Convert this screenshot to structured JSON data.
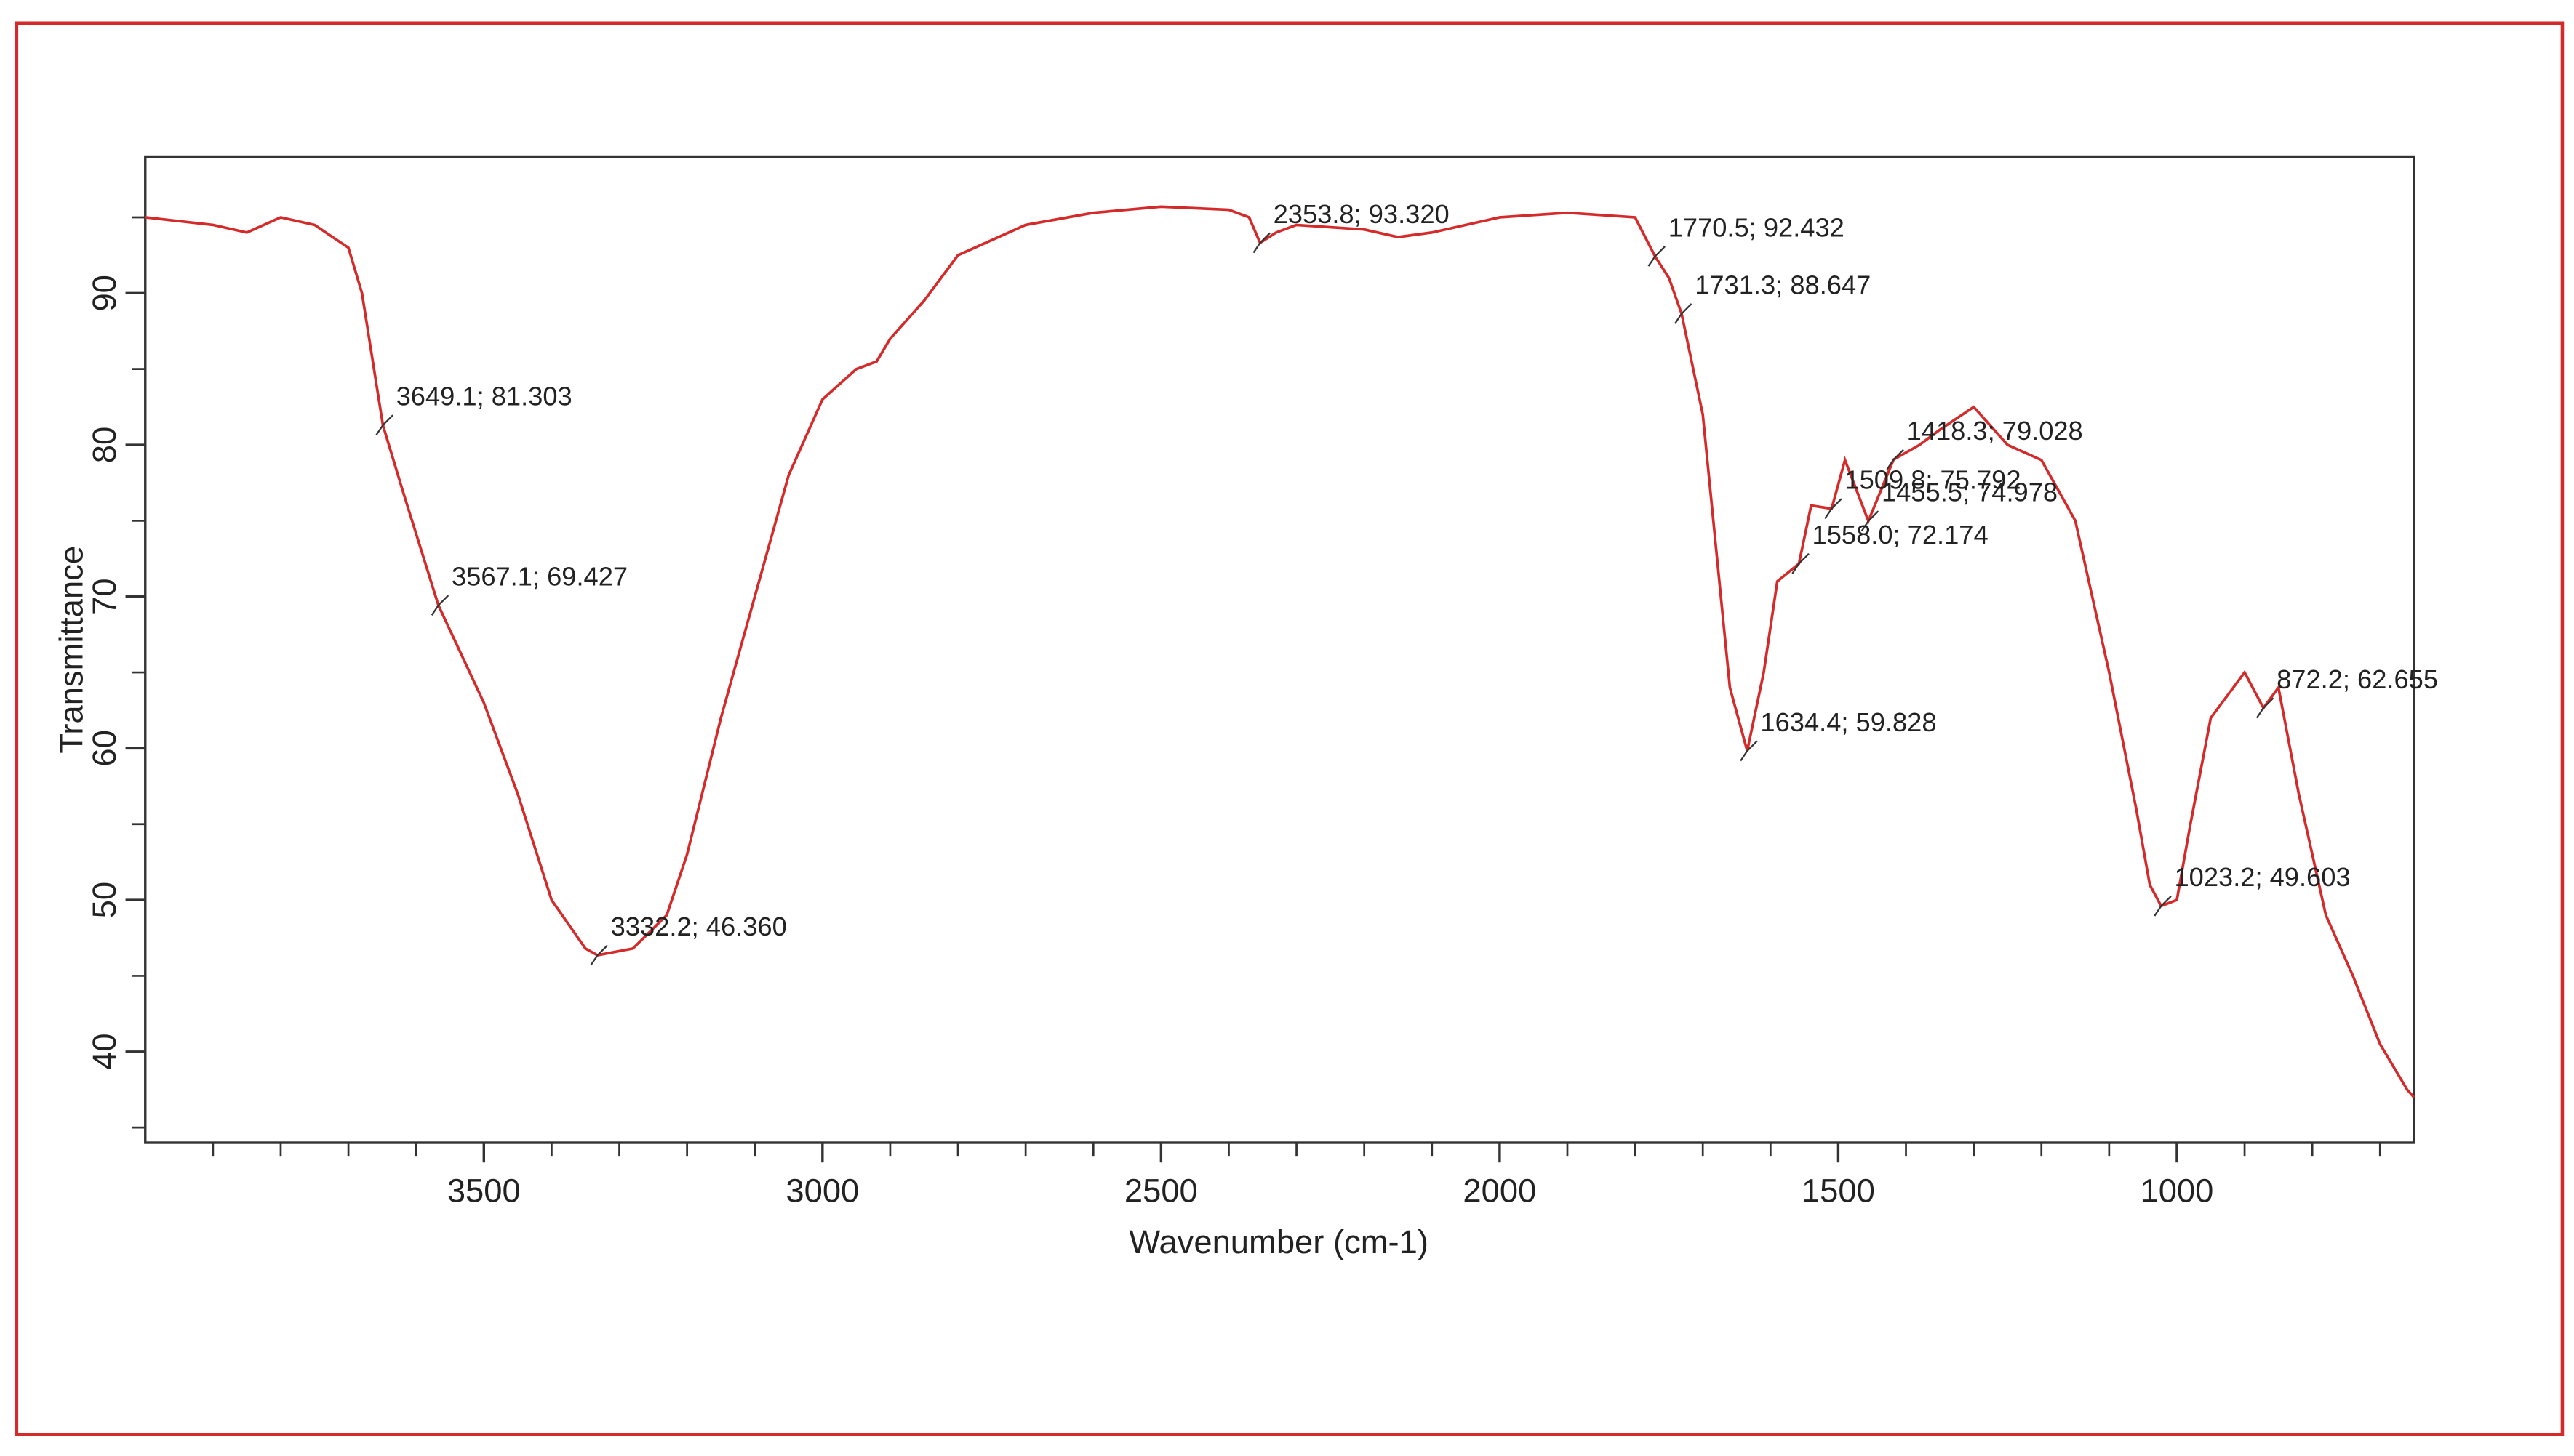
{
  "chart_data": {
    "type": "line",
    "x_label": "Wavenumber (cm-1)",
    "y_label": "Transmittance",
    "color": "#d42a2a",
    "xlim": [
      4000,
      650
    ],
    "ylim": [
      34,
      99
    ],
    "xticks": [
      3500,
      3000,
      2500,
      2000,
      1500,
      1000
    ],
    "xminorticks": [
      3900,
      3800,
      3700,
      3600,
      3400,
      3300,
      3200,
      3100,
      2900,
      2800,
      2700,
      2600,
      2400,
      2300,
      2200,
      2100,
      1900,
      1800,
      1700,
      1600,
      1400,
      1300,
      1200,
      1100,
      900,
      800,
      700
    ],
    "yticks": [
      40,
      50,
      60,
      70,
      80,
      90
    ],
    "yminorticks": [
      35,
      45,
      55,
      65,
      75,
      85,
      95
    ],
    "x": [
      4000,
      3900,
      3850,
      3800,
      3750,
      3700,
      3680,
      3649.1,
      3620,
      3567.1,
      3500,
      3450,
      3400,
      3350,
      3332.2,
      3280,
      3230,
      3200,
      3150,
      3100,
      3050,
      3000,
      2950,
      2920,
      2900,
      2860,
      2850,
      2800,
      2700,
      2600,
      2500,
      2400,
      2370,
      2353.8,
      2330,
      2300,
      2200,
      2150,
      2100,
      2000,
      1900,
      1800,
      1770.5,
      1750,
      1731.3,
      1700,
      1680,
      1660,
      1634.4,
      1610,
      1590,
      1558.0,
      1540,
      1509.8,
      1490,
      1455.5,
      1418.3,
      1380,
      1350,
      1300,
      1250,
      1200,
      1150,
      1100,
      1060,
      1040,
      1023.2,
      1000,
      980,
      950,
      900,
      872.2,
      850,
      820,
      780,
      740,
      700,
      660,
      650
    ],
    "values": [
      95,
      94.5,
      94,
      95,
      94.5,
      93,
      90,
      81.303,
      77,
      69.427,
      63,
      57,
      50,
      46.8,
      46.36,
      46.8,
      49,
      53,
      62,
      70,
      78,
      83,
      85,
      85.5,
      87,
      89,
      89.5,
      92.5,
      94.5,
      95.3,
      95.7,
      95.5,
      95,
      93.32,
      94,
      94.5,
      94.2,
      93.7,
      94,
      95,
      95.3,
      95,
      92.432,
      91,
      88.647,
      82,
      73,
      64,
      59.828,
      65,
      71,
      72.174,
      76,
      75.792,
      79,
      74.978,
      79.028,
      80,
      81,
      82.5,
      80,
      79,
      75,
      65,
      56,
      51,
      49.603,
      50,
      55,
      62,
      65,
      62.655,
      64,
      57,
      49,
      45,
      40.5,
      37.5,
      37
    ],
    "annotations": [
      {
        "x": 3649.1,
        "y": 81.303,
        "label": "3649.1; 81.303"
      },
      {
        "x": 3567.1,
        "y": 69.427,
        "label": "3567.1; 69.427"
      },
      {
        "x": 3332.2,
        "y": 46.36,
        "label": "3332.2; 46.360"
      },
      {
        "x": 2353.8,
        "y": 93.32,
        "label": "2353.8; 93.320"
      },
      {
        "x": 1770.5,
        "y": 92.432,
        "label": "1770.5; 92.432"
      },
      {
        "x": 1731.3,
        "y": 88.647,
        "label": "1731.3; 88.647"
      },
      {
        "x": 1418.3,
        "y": 79.028,
        "label": "1418.3; 79.028"
      },
      {
        "x": 1509.8,
        "y": 75.792,
        "label": "1509.8; 75.792"
      },
      {
        "x": 1455.5,
        "y": 74.978,
        "label": "1455.5; 74.978"
      },
      {
        "x": 1558.0,
        "y": 72.174,
        "label": "1558.0; 72.174"
      },
      {
        "x": 1634.4,
        "y": 59.828,
        "label": "1634.4; 59.828"
      },
      {
        "x": 872.2,
        "y": 62.655,
        "label": "872.2; 62.655"
      },
      {
        "x": 1023.2,
        "y": 49.603,
        "label": "1023.2; 49.603"
      }
    ]
  }
}
